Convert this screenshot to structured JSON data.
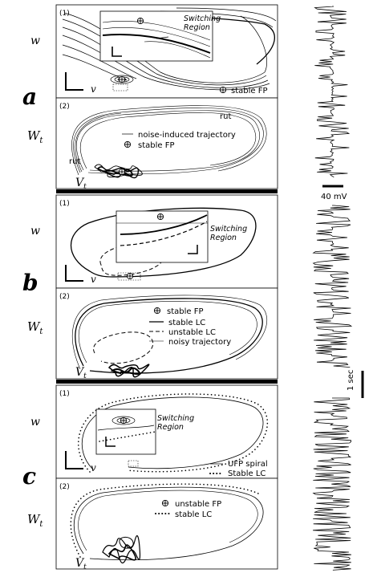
{
  "panels": [
    {
      "letter": "a",
      "sub1": {
        "num": "(1)",
        "ylabel": "w",
        "xlabel": "v",
        "region_line1": "Switching",
        "region_line2": "Region",
        "legend": [
          {
            "symbol": "fp-stable",
            "label": "stable FP"
          }
        ]
      },
      "sub2": {
        "num": "(2)",
        "ylabel_main": "W",
        "ylabel_sub": "t",
        "xlabel_main": "V",
        "xlabel_sub": "t",
        "legend": [
          {
            "symbol": "line-thin",
            "label": "noise-induced trajectory"
          },
          {
            "symbol": "fp-stable",
            "label": "stable FP"
          }
        ],
        "annotations": [
          "rut",
          "rut"
        ]
      }
    },
    {
      "letter": "b",
      "sub1": {
        "num": "(1)",
        "ylabel": "w",
        "xlabel": "v",
        "region_line1": "Switching",
        "region_line2": "Region"
      },
      "sub2": {
        "num": "(2)",
        "ylabel_main": "W",
        "ylabel_sub": "t",
        "xlabel_main": "V",
        "xlabel_sub": "t",
        "legend": [
          {
            "symbol": "fp-stable",
            "label": "stable FP"
          },
          {
            "symbol": "line-solid",
            "label": "stable LC"
          },
          {
            "symbol": "line-dashed",
            "label": "unstable LC"
          },
          {
            "symbol": "line-thin",
            "label": "noisy trajectory"
          }
        ]
      }
    },
    {
      "letter": "c",
      "sub1": {
        "num": "(1)",
        "ylabel": "w",
        "xlabel": "v",
        "region_line1": "Switching",
        "region_line2": "Region",
        "legend": [
          {
            "symbol": "line-thin",
            "label": "UFP spiral"
          },
          {
            "symbol": "line-dotted",
            "label": "Stable LC"
          }
        ]
      },
      "sub2": {
        "num": "(2)",
        "ylabel_main": "W",
        "ylabel_sub": "t",
        "xlabel_main": "V",
        "xlabel_sub": "t",
        "legend": [
          {
            "symbol": "fp-unstable",
            "label": "unstable FP"
          },
          {
            "symbol": "line-dotted",
            "label": "stable LC"
          }
        ]
      }
    }
  ],
  "scalebars": {
    "voltage": "40 mV",
    "time": "1 sec"
  }
}
